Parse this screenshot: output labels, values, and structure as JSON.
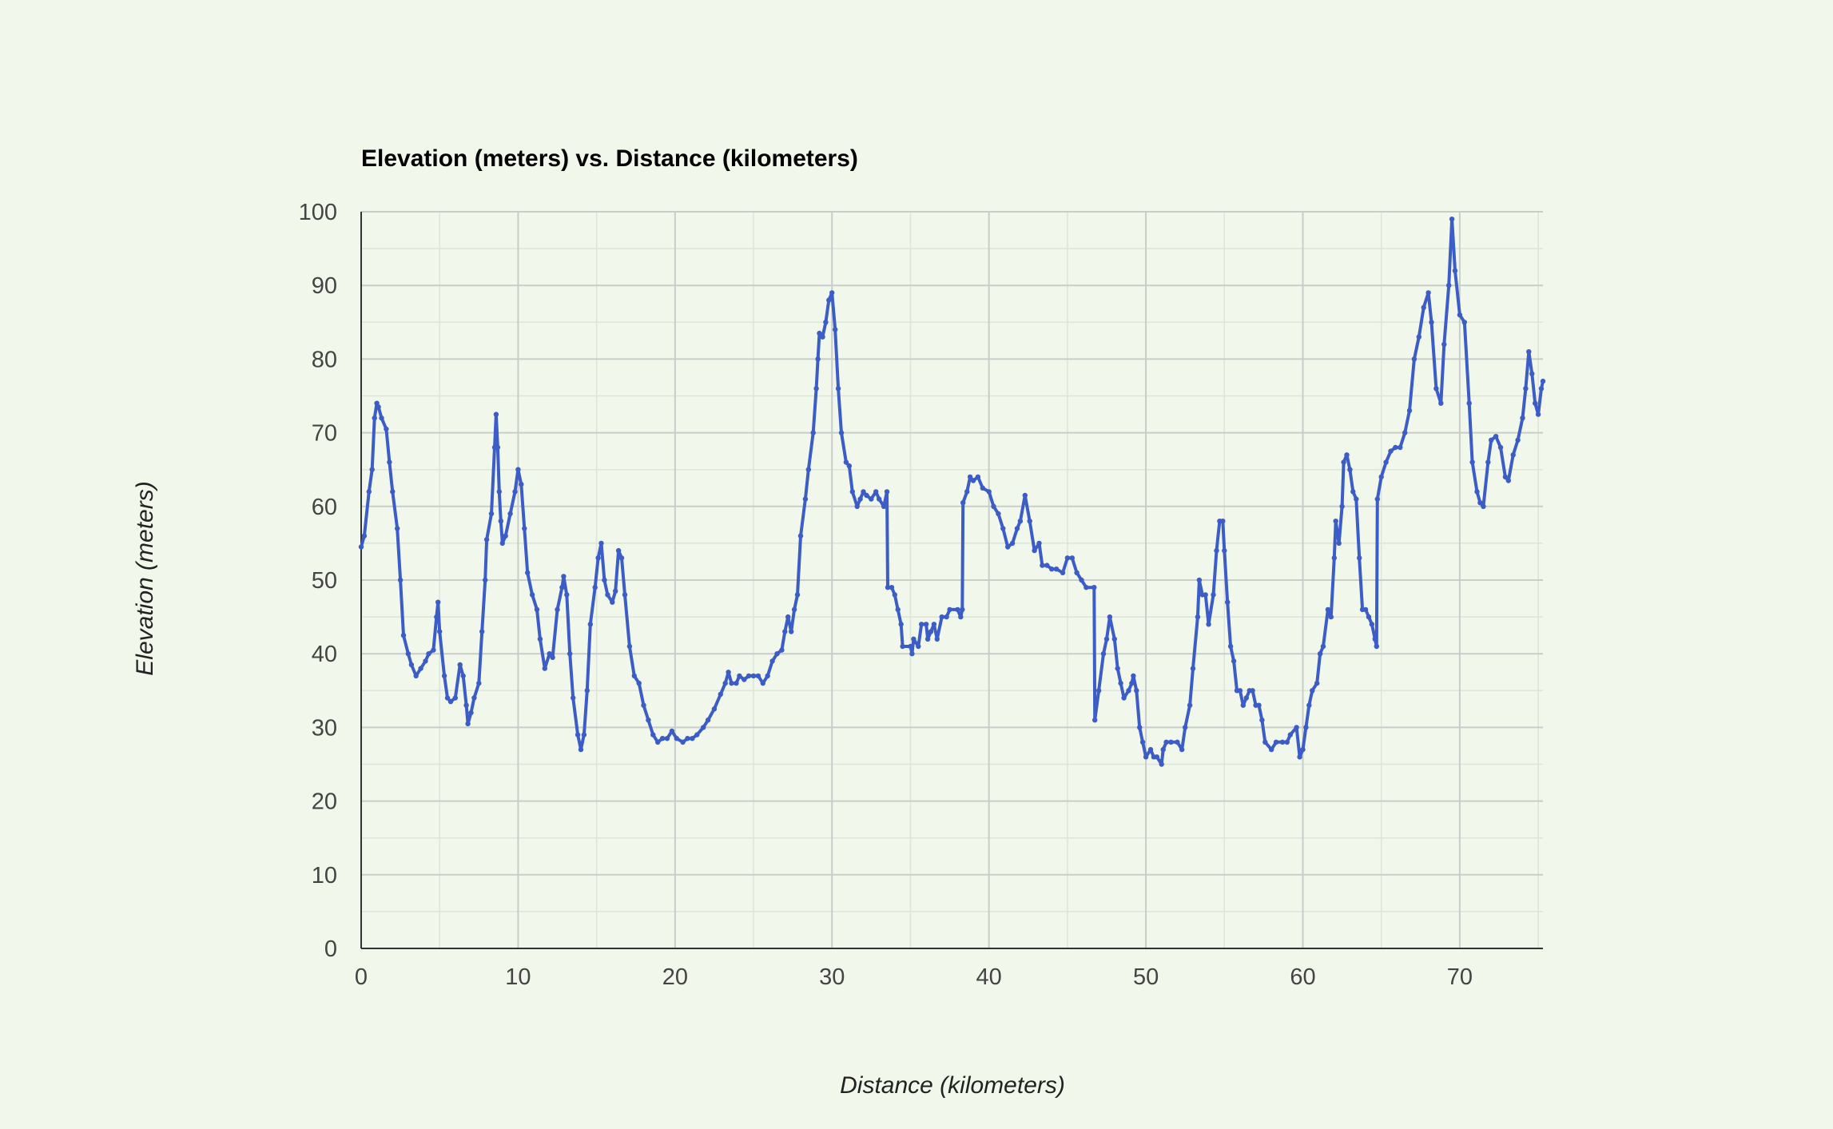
{
  "chart_data": {
    "type": "line",
    "title": "Elevation (meters) vs. Distance (kilometers)",
    "xlabel": "Distance (kilometers)",
    "ylabel": "Elevation (meters)",
    "xlim": [
      0,
      75.3
    ],
    "ylim": [
      0,
      100
    ],
    "x_ticks": [
      "0",
      "10",
      "20",
      "30",
      "40",
      "50",
      "60",
      "70"
    ],
    "y_ticks": [
      "0",
      "10",
      "20",
      "30",
      "40",
      "50",
      "60",
      "70",
      "80",
      "90",
      "100"
    ],
    "grid": true,
    "legend": "none",
    "colors": {
      "line": "#3c5cc8",
      "background": "#f1f8eb",
      "grid_major": "#c9cdc9",
      "grid_minor": "#dde4da",
      "axis": "#333333"
    },
    "series": [
      {
        "points": [
          [
            0,
            54.5
          ],
          [
            0.2,
            56
          ],
          [
            0.5,
            62
          ],
          [
            0.7,
            65
          ],
          [
            0.85,
            72
          ],
          [
            1.0,
            74
          ],
          [
            1.1,
            73.5
          ],
          [
            1.3,
            72
          ],
          [
            1.6,
            70.5
          ],
          [
            1.8,
            66
          ],
          [
            2.0,
            62
          ],
          [
            2.3,
            57
          ],
          [
            2.5,
            50
          ],
          [
            2.7,
            42.5
          ],
          [
            3.0,
            40
          ],
          [
            3.2,
            38.5
          ],
          [
            3.5,
            37
          ],
          [
            3.8,
            38
          ],
          [
            4.1,
            39
          ],
          [
            4.3,
            40
          ],
          [
            4.6,
            40.5
          ],
          [
            4.8,
            45
          ],
          [
            4.9,
            47
          ],
          [
            5.0,
            43
          ],
          [
            5.3,
            37
          ],
          [
            5.5,
            34
          ],
          [
            5.7,
            33.5
          ],
          [
            6.0,
            34
          ],
          [
            6.3,
            38.5
          ],
          [
            6.5,
            37
          ],
          [
            6.7,
            33
          ],
          [
            6.8,
            30.5
          ],
          [
            7.0,
            32
          ],
          [
            7.2,
            34
          ],
          [
            7.5,
            36
          ],
          [
            7.7,
            43
          ],
          [
            7.9,
            50
          ],
          [
            8.0,
            55.5
          ],
          [
            8.3,
            59
          ],
          [
            8.5,
            68
          ],
          [
            8.6,
            72.5
          ],
          [
            8.7,
            68
          ],
          [
            8.8,
            62
          ],
          [
            8.9,
            58
          ],
          [
            9.0,
            55
          ],
          [
            9.2,
            56
          ],
          [
            9.5,
            59
          ],
          [
            9.8,
            62
          ],
          [
            10.0,
            65
          ],
          [
            10.2,
            63
          ],
          [
            10.4,
            57
          ],
          [
            10.6,
            51
          ],
          [
            10.9,
            48
          ],
          [
            11.2,
            46
          ],
          [
            11.4,
            42
          ],
          [
            11.7,
            38
          ],
          [
            12.0,
            40
          ],
          [
            12.2,
            39.5
          ],
          [
            12.5,
            46
          ],
          [
            12.8,
            49
          ],
          [
            12.9,
            50.5
          ],
          [
            13.1,
            48
          ],
          [
            13.3,
            40
          ],
          [
            13.5,
            34
          ],
          [
            13.8,
            29
          ],
          [
            14.0,
            27
          ],
          [
            14.2,
            29
          ],
          [
            14.4,
            35
          ],
          [
            14.6,
            44
          ],
          [
            14.9,
            49
          ],
          [
            15.1,
            53
          ],
          [
            15.3,
            55
          ],
          [
            15.5,
            50
          ],
          [
            15.7,
            48
          ],
          [
            16.0,
            47
          ],
          [
            16.2,
            48.5
          ],
          [
            16.4,
            54
          ],
          [
            16.6,
            53
          ],
          [
            16.8,
            48
          ],
          [
            17.1,
            41
          ],
          [
            17.4,
            37
          ],
          [
            17.7,
            36
          ],
          [
            18.0,
            33
          ],
          [
            18.3,
            31
          ],
          [
            18.6,
            29
          ],
          [
            18.9,
            28
          ],
          [
            19.2,
            28.5
          ],
          [
            19.5,
            28.5
          ],
          [
            19.8,
            29.5
          ],
          [
            20.1,
            28.5
          ],
          [
            20.5,
            28
          ],
          [
            20.8,
            28.5
          ],
          [
            21.1,
            28.5
          ],
          [
            21.4,
            29
          ],
          [
            21.8,
            30
          ],
          [
            22.1,
            31
          ],
          [
            22.5,
            32.5
          ],
          [
            22.9,
            34.5
          ],
          [
            23.2,
            36
          ],
          [
            23.4,
            37.5
          ],
          [
            23.6,
            36
          ],
          [
            23.9,
            36
          ],
          [
            24.1,
            37
          ],
          [
            24.4,
            36.5
          ],
          [
            24.7,
            37
          ],
          [
            25.0,
            37
          ],
          [
            25.3,
            37
          ],
          [
            25.6,
            36
          ],
          [
            25.9,
            37
          ],
          [
            26.2,
            39
          ],
          [
            26.5,
            40
          ],
          [
            26.8,
            40.5
          ],
          [
            27.0,
            43
          ],
          [
            27.2,
            45
          ],
          [
            27.4,
            43
          ],
          [
            27.6,
            46
          ],
          [
            27.8,
            48
          ],
          [
            28.0,
            56
          ],
          [
            28.3,
            61
          ],
          [
            28.5,
            65
          ],
          [
            28.8,
            70
          ],
          [
            29.0,
            76
          ],
          [
            29.1,
            80
          ],
          [
            29.2,
            83.5
          ],
          [
            29.4,
            83
          ],
          [
            29.6,
            85
          ],
          [
            29.8,
            88
          ],
          [
            30.0,
            89
          ],
          [
            30.2,
            84
          ],
          [
            30.4,
            76
          ],
          [
            30.6,
            70
          ],
          [
            30.9,
            66
          ],
          [
            31.1,
            65.5
          ],
          [
            31.3,
            62
          ],
          [
            31.6,
            60
          ],
          [
            31.8,
            61
          ],
          [
            32.0,
            62
          ],
          [
            32.2,
            61.5
          ],
          [
            32.5,
            61
          ],
          [
            32.8,
            62
          ],
          [
            33.0,
            61
          ],
          [
            33.3,
            60
          ],
          [
            33.5,
            62
          ],
          [
            33.55,
            49
          ],
          [
            33.8,
            49
          ],
          [
            34.0,
            48
          ],
          [
            34.2,
            46
          ],
          [
            34.4,
            44
          ],
          [
            34.5,
            41
          ],
          [
            35.0,
            41
          ],
          [
            35.1,
            40
          ],
          [
            35.2,
            42
          ],
          [
            35.5,
            41
          ],
          [
            35.7,
            44
          ],
          [
            36.0,
            44
          ],
          [
            36.1,
            42
          ],
          [
            36.3,
            43
          ],
          [
            36.5,
            44
          ],
          [
            36.7,
            42
          ],
          [
            37.0,
            45
          ],
          [
            37.3,
            45
          ],
          [
            37.5,
            46
          ],
          [
            38.0,
            46
          ],
          [
            38.2,
            45
          ],
          [
            38.3,
            46
          ],
          [
            38.35,
            60.5
          ],
          [
            38.6,
            62
          ],
          [
            38.8,
            64
          ],
          [
            39.0,
            63.5
          ],
          [
            39.3,
            64
          ],
          [
            39.6,
            62.5
          ],
          [
            40.0,
            62
          ],
          [
            40.3,
            60
          ],
          [
            40.6,
            59
          ],
          [
            40.9,
            57
          ],
          [
            41.2,
            54.5
          ],
          [
            41.5,
            55
          ],
          [
            41.8,
            57
          ],
          [
            42.0,
            58
          ],
          [
            42.3,
            61.5
          ],
          [
            42.6,
            58
          ],
          [
            42.9,
            54
          ],
          [
            43.2,
            55
          ],
          [
            43.4,
            52
          ],
          [
            43.7,
            52
          ],
          [
            44.0,
            51.5
          ],
          [
            44.3,
            51.5
          ],
          [
            44.7,
            51
          ],
          [
            45.0,
            53
          ],
          [
            45.3,
            53
          ],
          [
            45.6,
            51
          ],
          [
            45.9,
            50
          ],
          [
            46.2,
            49
          ],
          [
            46.7,
            49
          ],
          [
            46.75,
            31
          ],
          [
            47.0,
            35
          ],
          [
            47.3,
            40
          ],
          [
            47.5,
            42
          ],
          [
            47.7,
            45
          ],
          [
            48.0,
            42
          ],
          [
            48.2,
            38
          ],
          [
            48.4,
            36
          ],
          [
            48.6,
            34
          ],
          [
            48.9,
            35
          ],
          [
            49.1,
            36
          ],
          [
            49.2,
            37
          ],
          [
            49.4,
            35
          ],
          [
            49.6,
            30
          ],
          [
            49.8,
            28
          ],
          [
            50.0,
            26
          ],
          [
            50.3,
            27
          ],
          [
            50.5,
            26
          ],
          [
            50.7,
            26
          ],
          [
            51.0,
            25
          ],
          [
            51.1,
            27
          ],
          [
            51.3,
            28
          ],
          [
            51.6,
            28
          ],
          [
            52.0,
            28
          ],
          [
            52.3,
            27
          ],
          [
            52.5,
            30
          ],
          [
            52.8,
            33
          ],
          [
            53.0,
            38
          ],
          [
            53.3,
            45
          ],
          [
            53.4,
            50
          ],
          [
            53.6,
            48
          ],
          [
            53.8,
            48
          ],
          [
            54.0,
            44
          ],
          [
            54.3,
            48
          ],
          [
            54.5,
            54
          ],
          [
            54.7,
            58
          ],
          [
            54.9,
            58
          ],
          [
            55.0,
            54
          ],
          [
            55.2,
            47
          ],
          [
            55.4,
            41
          ],
          [
            55.6,
            39
          ],
          [
            55.8,
            35
          ],
          [
            56.0,
            35
          ],
          [
            56.2,
            33
          ],
          [
            56.4,
            34
          ],
          [
            56.6,
            35
          ],
          [
            56.8,
            35
          ],
          [
            57.0,
            33
          ],
          [
            57.2,
            33
          ],
          [
            57.4,
            31
          ],
          [
            57.6,
            28
          ],
          [
            58.0,
            27
          ],
          [
            58.3,
            28
          ],
          [
            58.7,
            28
          ],
          [
            59.0,
            28
          ],
          [
            59.2,
            29
          ],
          [
            59.6,
            30
          ],
          [
            59.8,
            26
          ],
          [
            60.0,
            27
          ],
          [
            60.2,
            30
          ],
          [
            60.4,
            33
          ],
          [
            60.6,
            35
          ],
          [
            60.9,
            36
          ],
          [
            61.1,
            40
          ],
          [
            61.3,
            41
          ],
          [
            61.6,
            46
          ],
          [
            61.8,
            45
          ],
          [
            62.0,
            53
          ],
          [
            62.1,
            58
          ],
          [
            62.3,
            55
          ],
          [
            62.5,
            60
          ],
          [
            62.6,
            66
          ],
          [
            62.8,
            67
          ],
          [
            63.0,
            65
          ],
          [
            63.2,
            62
          ],
          [
            63.4,
            61
          ],
          [
            63.6,
            53
          ],
          [
            63.8,
            46
          ],
          [
            64.0,
            46
          ],
          [
            64.2,
            45
          ],
          [
            64.4,
            44
          ],
          [
            64.6,
            42
          ],
          [
            64.7,
            41
          ],
          [
            64.75,
            61
          ],
          [
            65.0,
            64
          ],
          [
            65.3,
            66
          ],
          [
            65.6,
            67.5
          ],
          [
            65.9,
            68
          ],
          [
            66.2,
            68
          ],
          [
            66.5,
            70
          ],
          [
            66.8,
            73
          ],
          [
            67.1,
            80
          ],
          [
            67.4,
            83
          ],
          [
            67.7,
            87
          ],
          [
            68.0,
            89
          ],
          [
            68.2,
            85
          ],
          [
            68.5,
            76
          ],
          [
            68.8,
            74
          ],
          [
            69.0,
            82
          ],
          [
            69.3,
            90
          ],
          [
            69.5,
            99
          ],
          [
            69.7,
            92
          ],
          [
            70.0,
            86
          ],
          [
            70.3,
            85
          ],
          [
            70.6,
            74
          ],
          [
            70.8,
            66
          ],
          [
            71.1,
            62
          ],
          [
            71.3,
            60.5
          ],
          [
            71.5,
            60
          ],
          [
            71.8,
            66
          ],
          [
            72.0,
            69
          ],
          [
            72.3,
            69.5
          ],
          [
            72.6,
            68
          ],
          [
            72.9,
            64
          ],
          [
            73.1,
            63.5
          ],
          [
            73.4,
            67
          ],
          [
            73.7,
            69
          ],
          [
            74.0,
            72
          ],
          [
            74.2,
            76
          ],
          [
            74.4,
            81
          ],
          [
            74.6,
            78
          ],
          [
            74.8,
            74
          ],
          [
            75.0,
            72.5
          ],
          [
            75.2,
            76
          ],
          [
            75.3,
            77
          ]
        ]
      }
    ]
  }
}
